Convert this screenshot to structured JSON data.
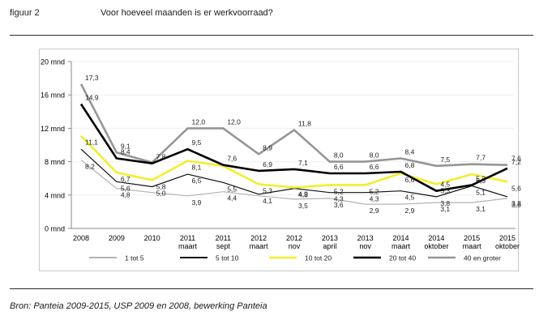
{
  "figure": {
    "label": "figuur 2",
    "title": "Voor hoeveel maanden is er werkvoorraad?"
  },
  "source": "Bron: Panteia 2009-2015, USP 2009 en 2008, bewerking Panteia",
  "chart_data": {
    "type": "line",
    "title": "Voor hoeveel maanden is er werkvoorraad?",
    "xlabel": "",
    "ylabel": "",
    "ylim": [
      0,
      20
    ],
    "yticks": [
      "0 mnd",
      "4 mnd",
      "8 mnd",
      "12 mnd",
      "16 mnd",
      "20 mnd"
    ],
    "categories": [
      [
        "2008",
        ""
      ],
      [
        "2009",
        ""
      ],
      [
        "2010",
        ""
      ],
      [
        "2011",
        "maart"
      ],
      [
        "2011",
        "sept"
      ],
      [
        "2012",
        "maart"
      ],
      [
        "2012",
        "nov"
      ],
      [
        "2013",
        "april"
      ],
      [
        "2013",
        "nov"
      ],
      [
        "2014",
        "maart"
      ],
      [
        "2014",
        "oktober"
      ],
      [
        "2015",
        "maart"
      ],
      [
        "2015",
        "oktober"
      ]
    ],
    "legend_position": "bottom",
    "series": [
      {
        "name": "1 tot 5",
        "color": "#b3b3b3",
        "width": 1.2,
        "values": [
          8.2,
          4.8,
          4.3,
          3.9,
          4.4,
          3.9,
          3.5,
          3.6,
          2.9,
          2.9,
          3.1,
          3.1,
          3.6
        ],
        "labels": [
          "8,2",
          "4,8",
          "",
          "3,9",
          "4,4",
          "",
          "3,5",
          "3,6",
          "2,9",
          "2,9",
          "3,1",
          "3,1",
          "3,6"
        ]
      },
      {
        "name": "5 tot 10",
        "color": "#111111",
        "width": 1.2,
        "values": [
          9.5,
          5.6,
          5.0,
          6.5,
          5.5,
          4.1,
          4.8,
          4.3,
          4.3,
          4.5,
          3.8,
          5.1,
          3.8
        ],
        "labels": [
          "",
          "5,6",
          "5,0",
          "6,5",
          "5,5",
          "4,1",
          "4,8",
          "4,3",
          "4,3",
          "4,5",
          "3,8",
          "5,1",
          "3,8"
        ]
      },
      {
        "name": "10 tot 20",
        "color": "#f2ee2e",
        "width": 2.6,
        "values": [
          11.1,
          6.7,
          5.8,
          8.1,
          7.5,
          5.3,
          4.9,
          5.2,
          5.2,
          6.6,
          5.3,
          6.5,
          5.6
        ],
        "labels": [
          "11,1",
          "6,7",
          "5,8",
          "8,1",
          "",
          "5,3",
          "4,9",
          "5,2",
          "5,2",
          "6,6",
          "5,3",
          "6,5",
          "5,6"
        ]
      },
      {
        "name": "20 tot 40",
        "color": "#000000",
        "width": 2.6,
        "values": [
          14.9,
          8.4,
          7.8,
          9.5,
          7.6,
          6.9,
          7.1,
          6.6,
          6.6,
          6.8,
          4.5,
          5.2,
          7.2
        ],
        "labels": [
          "14,9",
          "8,4",
          "7,8",
          "9,5",
          "7,6",
          "6,9",
          "7,1",
          "6,6",
          "6,6",
          "6,8",
          "4,5",
          "5,2",
          "7,2"
        ]
      },
      {
        "name": "40 en groter",
        "color": "#969696",
        "width": 2.6,
        "values": [
          17.3,
          9.1,
          7.9,
          12.0,
          12.0,
          8.9,
          11.8,
          8.0,
          8.0,
          8.4,
          7.5,
          7.7,
          7.6
        ],
        "labels": [
          "17,3",
          "9,1",
          "",
          "12,0",
          "12,0",
          "8,9",
          "11,8",
          "8,0",
          "8,0",
          "8,4",
          "7,5",
          "7,7",
          "7,6"
        ]
      }
    ]
  }
}
